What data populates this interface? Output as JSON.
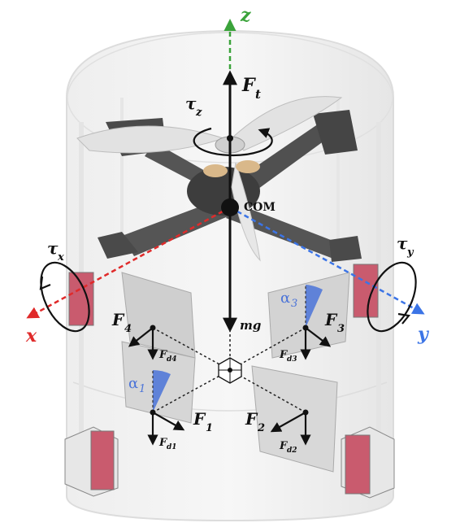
{
  "labels": {
    "axis_z": "z",
    "axis_x": "x",
    "axis_y": "y",
    "thrust": "F",
    "thrust_sub": "t",
    "com": "COM",
    "gravity": "mg",
    "tau": "τ",
    "tau_z_sub": "z",
    "tau_x_sub": "x",
    "tau_y_sub": "y",
    "alpha": "α",
    "alpha_1_sub": "1",
    "alpha_3_sub": "3",
    "force": "F",
    "f1_sub": "1",
    "f2_sub": "2",
    "f3_sub": "3",
    "f4_sub": "4",
    "fd1_sub": "d1",
    "fd2_sub": "d2",
    "fd3_sub": "d3",
    "fd4_sub": "d4"
  },
  "colors": {
    "axis_x": "#e02a2a",
    "axis_y": "#3b74e6",
    "axis_z": "#3aa33a",
    "angle": "#4a73d8",
    "servo": "#c95b6e",
    "frame": "#4a4a4a"
  }
}
